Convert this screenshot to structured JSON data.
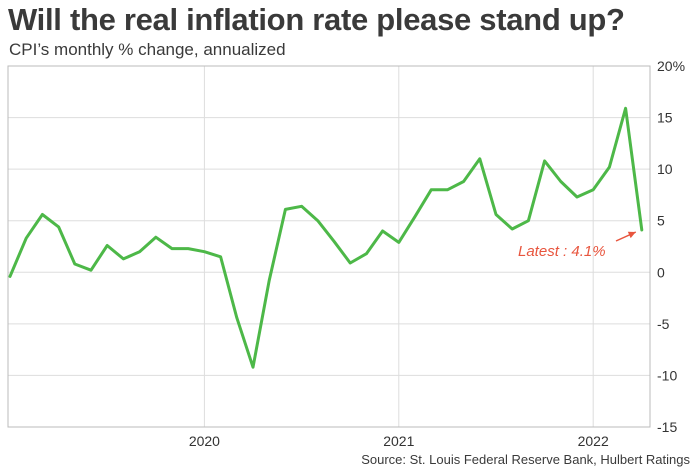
{
  "chart_data": {
    "type": "line",
    "title": "Will the real inflation rate please stand up?",
    "subtitle": "CPI’s monthly % change, annualized",
    "source": "Source: St. Louis Federal Reserve Bank, Hulbert Ratings",
    "x_tick_labels": [
      "2020",
      "2021",
      "2022"
    ],
    "y_tick_labels": [
      "20%",
      "15",
      "10",
      "5",
      "0",
      "-5",
      "-10",
      "-15"
    ],
    "ylim": [
      -15,
      20
    ],
    "grid": true,
    "annotation": {
      "text": "Latest : 4.1%",
      "color": "#e8553e"
    },
    "series": [
      {
        "color": "#4db848",
        "x": [
          "2019-01",
          "2019-02",
          "2019-03",
          "2019-04",
          "2019-05",
          "2019-06",
          "2019-07",
          "2019-08",
          "2019-09",
          "2019-10",
          "2019-11",
          "2019-12",
          "2020-01",
          "2020-02",
          "2020-03",
          "2020-04",
          "2020-05",
          "2020-06",
          "2020-07",
          "2020-08",
          "2020-09",
          "2020-10",
          "2020-11",
          "2020-12",
          "2021-01",
          "2021-02",
          "2021-03",
          "2021-04",
          "2021-05",
          "2021-06",
          "2021-07",
          "2021-08",
          "2021-09",
          "2021-10",
          "2021-11",
          "2021-12",
          "2022-01",
          "2022-02",
          "2022-03",
          "2022-04"
        ],
        "values": [
          -0.4,
          3.3,
          5.6,
          4.4,
          0.8,
          0.2,
          2.6,
          1.3,
          2.0,
          3.4,
          2.3,
          2.3,
          2.0,
          1.5,
          -4.4,
          -9.2,
          -0.8,
          6.1,
          6.4,
          5.0,
          3.0,
          0.9,
          1.8,
          4.0,
          2.9,
          5.4,
          8.0,
          8.0,
          8.8,
          11.0,
          5.6,
          4.2,
          5.0,
          10.8,
          8.8,
          7.3,
          8.0,
          10.2,
          15.9,
          4.1
        ]
      }
    ]
  }
}
